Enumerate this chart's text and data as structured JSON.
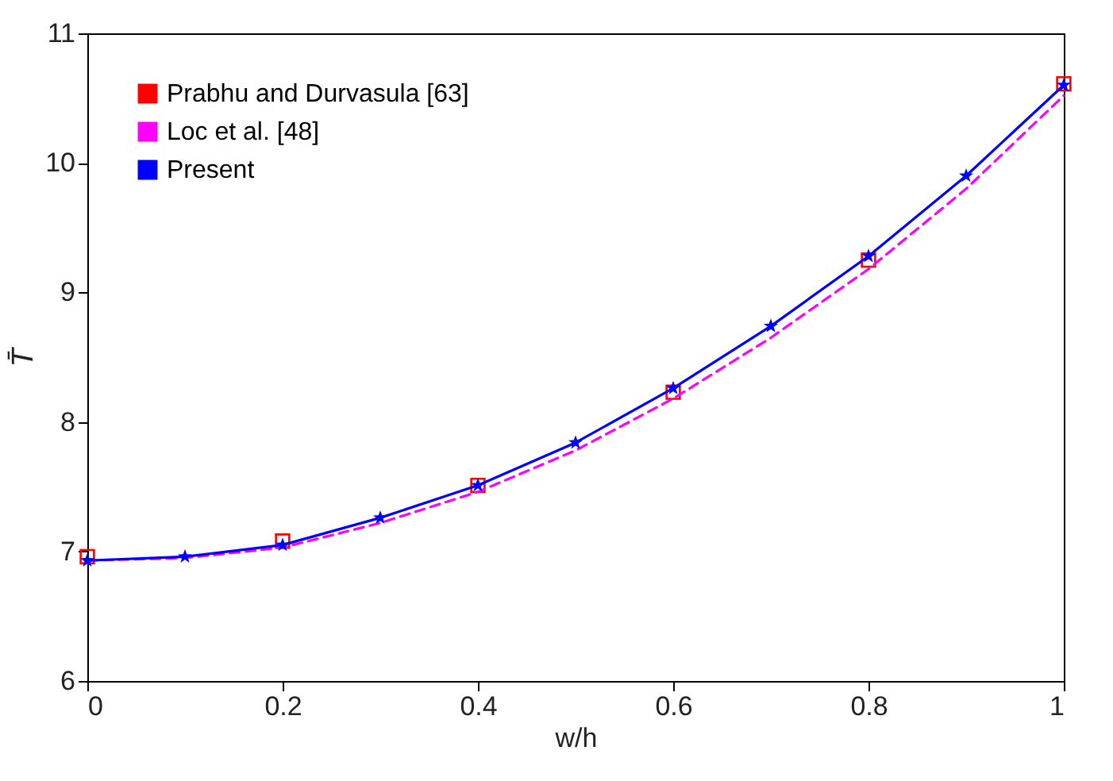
{
  "chart_data": {
    "type": "line",
    "xlabel": "w/h",
    "ylabel": "T̄",
    "x": [
      0,
      0.1,
      0.2,
      0.3,
      0.4,
      0.5,
      0.6,
      0.7,
      0.8,
      0.9,
      1
    ],
    "series": [
      {
        "name": "Prabhu and Durvasula [63]",
        "type": "scatter",
        "marker": "square",
        "color": "#ff0000",
        "x": [
          0,
          0.2,
          0.4,
          0.6,
          0.8,
          1
        ],
        "values": [
          6.96,
          7.08,
          7.51,
          8.23,
          9.25,
          10.61
        ]
      },
      {
        "name": "Loc et al. [48]",
        "marker": "none",
        "line_style": "dashed",
        "color": "#ff00ff",
        "values": [
          6.93,
          6.95,
          7.03,
          7.22,
          7.46,
          7.78,
          8.18,
          8.65,
          9.18,
          9.8,
          10.52
        ]
      },
      {
        "name": "Present",
        "marker": "star",
        "line_style": "solid",
        "color": "#0000ff",
        "values": [
          6.93,
          6.96,
          7.05,
          7.26,
          7.51,
          7.84,
          8.26,
          8.74,
          9.28,
          9.9,
          10.6
        ]
      }
    ],
    "xlim": [
      0,
      1
    ],
    "xticks": [
      0,
      0.2,
      0.4,
      0.6,
      0.8,
      1
    ],
    "ylim": [
      6,
      11
    ],
    "yticks": [
      6,
      7,
      8,
      9,
      10,
      11
    ],
    "grid": false,
    "legend": "top left"
  }
}
